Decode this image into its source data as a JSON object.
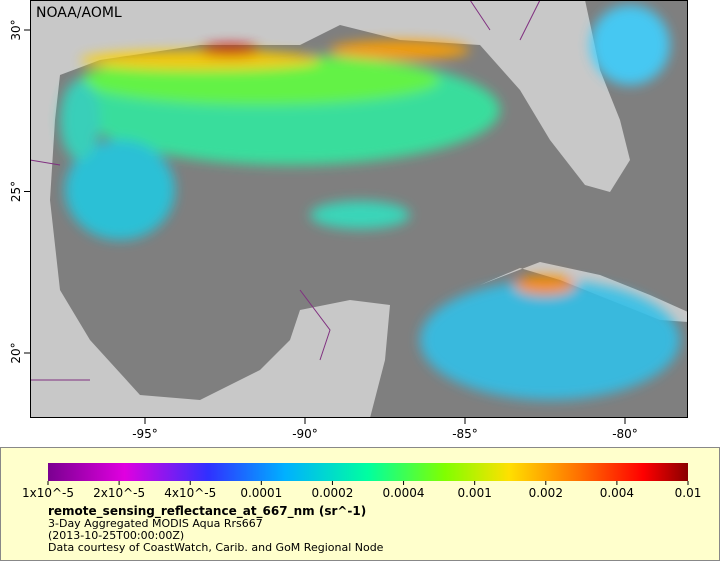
{
  "map": {
    "credit": "NOAA/AOML",
    "lat_ticks": [
      {
        "value": 30,
        "label": "30°"
      },
      {
        "value": 25,
        "label": "25°"
      },
      {
        "value": 20,
        "label": "20°"
      }
    ],
    "lon_ticks": [
      {
        "value": -95,
        "label": "-95°"
      },
      {
        "value": -90,
        "label": "-90°"
      },
      {
        "value": -85,
        "label": "-85°"
      },
      {
        "value": -80,
        "label": "-80°"
      }
    ],
    "colorbar": {
      "scale": "log",
      "ticks": [
        {
          "value": 1e-05,
          "label": "1x10^-5"
        },
        {
          "value": 2e-05,
          "label": "2x10^-5"
        },
        {
          "value": 4e-05,
          "label": "4x10^-5"
        },
        {
          "value": 0.0001,
          "label": "0.0001"
        },
        {
          "value": 0.0002,
          "label": "0.0002"
        },
        {
          "value": 0.0004,
          "label": "0.0004"
        },
        {
          "value": 0.001,
          "label": "0.001"
        },
        {
          "value": 0.002,
          "label": "0.002"
        },
        {
          "value": 0.004,
          "label": "0.004"
        },
        {
          "value": 0.01,
          "label": "0.01"
        }
      ]
    },
    "caption": {
      "variable": "remote_sensing_reflectance_at_667_nm (sr^-1)",
      "product": "3-Day Aggregated MODIS Aqua Rrs667",
      "time": "(2013-10-25T00:00:00Z)",
      "source": "Data courtesy of CoastWatch, Carib. and GoM Regional Node"
    }
  }
}
